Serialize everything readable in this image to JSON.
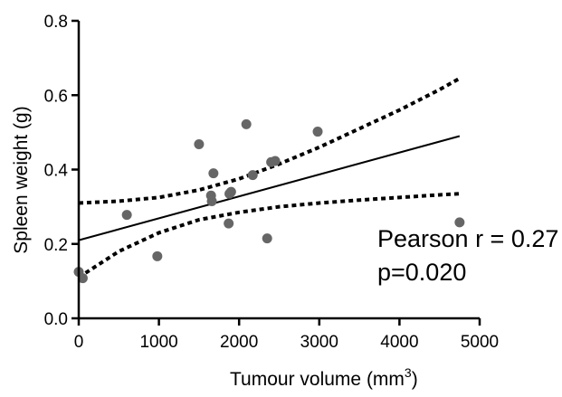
{
  "chart_data": {
    "type": "scatter",
    "title": "",
    "xlabel": "Tumour volume (mm",
    "xlabel_sup": "3",
    "xlabel_close": ")",
    "ylabel": "Spleen weight (g)",
    "xlim": [
      0,
      5000
    ],
    "ylim": [
      0,
      0.8
    ],
    "x_ticks": [
      0,
      1000,
      2000,
      3000,
      4000,
      5000
    ],
    "y_ticks": [
      0.0,
      0.2,
      0.4,
      0.6,
      0.8
    ],
    "x_tick_labels": [
      "0",
      "1000",
      "2000",
      "3000",
      "4000",
      "5000"
    ],
    "y_tick_labels": [
      "0.0",
      "0.2",
      "0.4",
      "0.6",
      "0.8"
    ],
    "grid": false,
    "point_color": "#666666",
    "points": [
      {
        "x": 0,
        "y": 0.125
      },
      {
        "x": 50,
        "y": 0.108
      },
      {
        "x": 600,
        "y": 0.278
      },
      {
        "x": 980,
        "y": 0.167
      },
      {
        "x": 1500,
        "y": 0.468
      },
      {
        "x": 1650,
        "y": 0.33
      },
      {
        "x": 1660,
        "y": 0.315
      },
      {
        "x": 1680,
        "y": 0.39
      },
      {
        "x": 1870,
        "y": 0.255
      },
      {
        "x": 1880,
        "y": 0.335
      },
      {
        "x": 1900,
        "y": 0.34
      },
      {
        "x": 2090,
        "y": 0.522
      },
      {
        "x": 2170,
        "y": 0.385
      },
      {
        "x": 2350,
        "y": 0.215
      },
      {
        "x": 2400,
        "y": 0.42
      },
      {
        "x": 2450,
        "y": 0.423
      },
      {
        "x": 2980,
        "y": 0.502
      },
      {
        "x": 4750,
        "y": 0.258
      }
    ],
    "fit_line": {
      "x": [
        0,
        4750
      ],
      "y": [
        0.21,
        0.49
      ]
    },
    "ci_upper": {
      "x": [
        0,
        500,
        1000,
        1500,
        2000,
        2500,
        3000,
        3500,
        4000,
        4500,
        4750
      ],
      "y": [
        0.31,
        0.315,
        0.325,
        0.345,
        0.375,
        0.415,
        0.46,
        0.51,
        0.56,
        0.615,
        0.645
      ]
    },
    "ci_lower": {
      "x": [
        0,
        500,
        1000,
        1500,
        2000,
        2500,
        3000,
        3500,
        4000,
        4500,
        4750
      ],
      "y": [
        0.11,
        0.18,
        0.23,
        0.265,
        0.285,
        0.3,
        0.31,
        0.318,
        0.325,
        0.332,
        0.335
      ]
    },
    "annotations": [
      "Pearson r = 0.27",
      "p=0.020"
    ]
  }
}
